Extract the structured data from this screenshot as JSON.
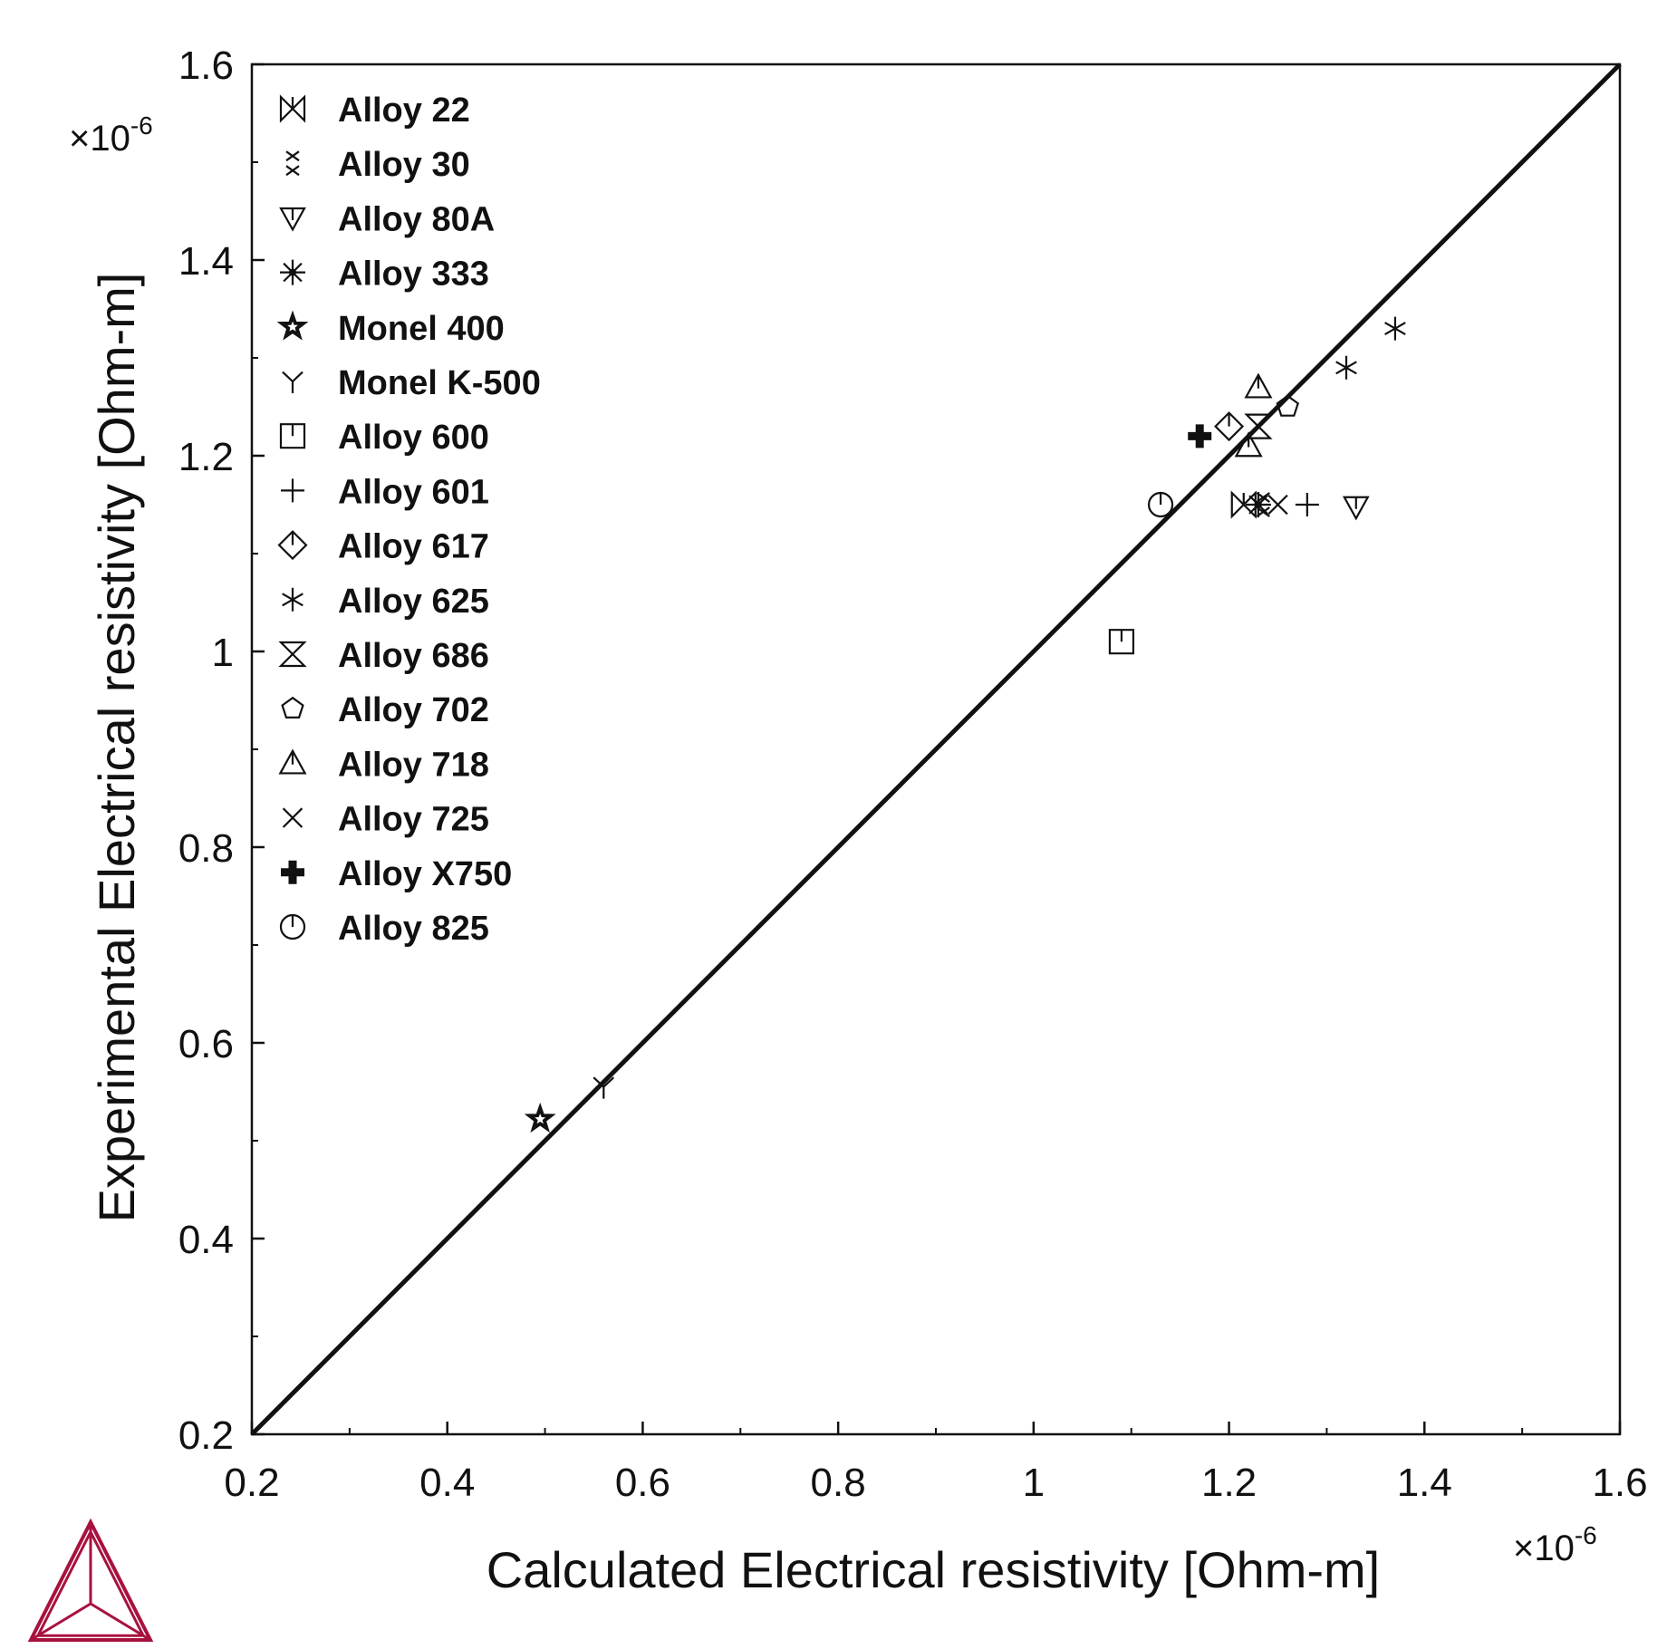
{
  "chart_data": {
    "type": "scatter",
    "title": "",
    "xlabel": "Calculated Electrical resistivity [Ohm-m]",
    "ylabel": "Experimental Electrical resistivity [Ohm-m]",
    "x_exponent_label": "×10",
    "x_exponent_power": "-6",
    "y_exponent_label": "×10",
    "y_exponent_power": "-6",
    "xlim": [
      0.2,
      1.6
    ],
    "ylim": [
      0.2,
      1.6
    ],
    "x_ticks": [
      0.2,
      0.4,
      0.6,
      0.8,
      1.0,
      1.2,
      1.4,
      1.6
    ],
    "x_tick_labels": [
      "0.2",
      "0.4",
      "0.6",
      "0.8",
      "1",
      "1.2",
      "1.4",
      "1.6"
    ],
    "y_ticks": [
      0.2,
      0.4,
      0.6,
      0.8,
      1.0,
      1.2,
      1.4,
      1.6
    ],
    "y_tick_labels": [
      "0.2",
      "0.4",
      "0.6",
      "0.8",
      "1",
      "1.2",
      "1.4",
      "1.6"
    ],
    "grid": false,
    "legend_position": "top-left",
    "reference_line": {
      "x": [
        0.2,
        1.6
      ],
      "y": [
        0.2,
        1.6
      ]
    },
    "series": [
      {
        "name": "Alloy 22",
        "marker": "bowtie",
        "points": [
          [
            1.215,
            1.15
          ]
        ]
      },
      {
        "name": "Alloy 30",
        "marker": "double-x",
        "points": [
          [
            1.235,
            1.15
          ]
        ]
      },
      {
        "name": "Alloy 80A",
        "marker": "triangle-down",
        "points": [
          [
            1.33,
            1.148
          ]
        ]
      },
      {
        "name": "Alloy 333",
        "marker": "star8",
        "points": [
          [
            1.23,
            1.15
          ]
        ]
      },
      {
        "name": "Monel 400",
        "marker": "star5",
        "points": [
          [
            0.495,
            0.522
          ]
        ]
      },
      {
        "name": "Monel K-500",
        "marker": "y-shape",
        "points": [
          [
            0.56,
            0.555
          ]
        ]
      },
      {
        "name": "Alloy 600",
        "marker": "square",
        "points": [
          [
            1.09,
            1.01
          ]
        ]
      },
      {
        "name": "Alloy 601",
        "marker": "plus",
        "points": [
          [
            1.28,
            1.15
          ]
        ]
      },
      {
        "name": "Alloy 617",
        "marker": "diamond",
        "points": [
          [
            1.2,
            1.23
          ]
        ]
      },
      {
        "name": "Alloy 625",
        "marker": "asterisk",
        "points": [
          [
            1.37,
            1.33
          ],
          [
            1.32,
            1.29
          ]
        ]
      },
      {
        "name": "Alloy 686",
        "marker": "hourglass",
        "points": [
          [
            1.23,
            1.23
          ]
        ]
      },
      {
        "name": "Alloy 702",
        "marker": "pentagon",
        "points": [
          [
            1.26,
            1.25
          ]
        ]
      },
      {
        "name": "Alloy 718",
        "marker": "triangle-up",
        "points": [
          [
            1.23,
            1.27
          ],
          [
            1.22,
            1.21
          ]
        ]
      },
      {
        "name": "Alloy 725",
        "marker": "x",
        "points": [
          [
            1.25,
            1.15
          ]
        ]
      },
      {
        "name": "Alloy X750",
        "marker": "plus-bold",
        "points": [
          [
            1.17,
            1.22
          ]
        ]
      },
      {
        "name": "Alloy 825",
        "marker": "circle",
        "points": [
          [
            1.13,
            1.15
          ]
        ]
      }
    ]
  },
  "logo": {
    "name": "triangle-logo-icon",
    "color": "#a8123e"
  }
}
